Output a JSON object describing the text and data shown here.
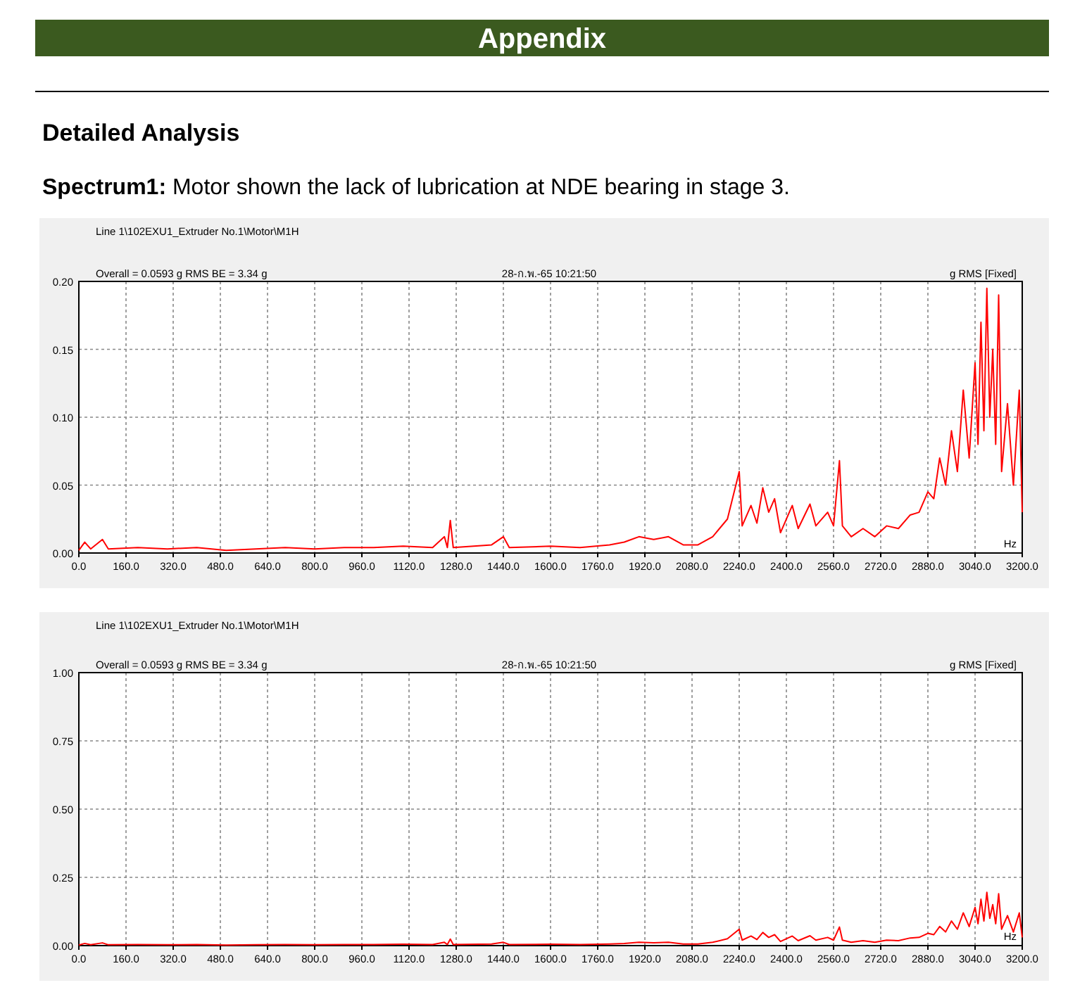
{
  "chart_data": [
    {
      "type": "line",
      "title": "Line 1\\102EXU1_Extruder No.1\\Motor\\M1H",
      "annotations": [
        "Appendix",
        "Detailed Analysis",
        "Spectrum1: Motor shown the lack of lubrication at NDE bearing in stage 3.",
        "Overall = 0.0593 g  RMS  BE = 3.34 g",
        "28-ก.พ.-65 10:21:50",
        "g  RMS  [Fixed]",
        "Hz"
      ],
      "xlim": [
        0,
        3200
      ],
      "xticks": [
        {
          "value": 0,
          "label": "0.0"
        },
        {
          "value": 160,
          "label": "160.0"
        },
        {
          "value": 320,
          "label": "320.0"
        },
        {
          "value": 480,
          "label": "480.0"
        },
        {
          "value": 640,
          "label": "640.0"
        },
        {
          "value": 800,
          "label": "800.0"
        },
        {
          "value": 960,
          "label": "960.0"
        },
        {
          "value": 1120,
          "label": "1120.0"
        },
        {
          "value": 1280,
          "label": "1280.0"
        },
        {
          "value": 1440,
          "label": "1440.0"
        },
        {
          "value": 1600,
          "label": "1600.0"
        },
        {
          "value": 1760,
          "label": "1760.0"
        },
        {
          "value": 1920,
          "label": "1920.0"
        },
        {
          "value": 2080,
          "label": "2080.0"
        },
        {
          "value": 2240,
          "label": "2240.0"
        },
        {
          "value": 2400,
          "label": "2400.0"
        },
        {
          "value": 2560,
          "label": "2560.0"
        },
        {
          "value": 2720,
          "label": "2720.0"
        },
        {
          "value": 2880,
          "label": "2880.0"
        },
        {
          "value": 3040,
          "label": "3040.0"
        },
        {
          "value": 3200,
          "label": "3200.0"
        }
      ],
      "ylim": [
        0,
        0.2
      ],
      "yticks": [
        {
          "value": 0,
          "label": "0.00"
        },
        {
          "value": 0.05,
          "label": "0.05"
        },
        {
          "value": 0.1,
          "label": "0.10"
        },
        {
          "value": 0.15,
          "label": "0.15"
        },
        {
          "value": 0.2,
          "label": "0.20"
        }
      ],
      "grid": true,
      "line_style": "solid",
      "x": [
        0,
        20,
        40,
        80,
        100,
        200,
        300,
        400,
        500,
        600,
        700,
        800,
        900,
        1000,
        1100,
        1200,
        1240,
        1250,
        1260,
        1270,
        1400,
        1440,
        1460,
        1600,
        1700,
        1800,
        1850,
        1900,
        1950,
        2000,
        2050,
        2100,
        2150,
        2200,
        2240,
        2250,
        2280,
        2300,
        2320,
        2340,
        2360,
        2380,
        2420,
        2440,
        2480,
        2500,
        2540,
        2560,
        2580,
        2590,
        2620,
        2660,
        2700,
        2740,
        2780,
        2820,
        2850,
        2880,
        2900,
        2920,
        2940,
        2960,
        2980,
        3000,
        3020,
        3040,
        3050,
        3060,
        3070,
        3080,
        3090,
        3100,
        3110,
        3120,
        3130,
        3150,
        3170,
        3190,
        3200
      ],
      "series": [
        {
          "color": "#ff0000",
          "values": [
            0.002,
            0.008,
            0.003,
            0.01,
            0.003,
            0.004,
            0.003,
            0.004,
            0.002,
            0.003,
            0.004,
            0.003,
            0.004,
            0.004,
            0.005,
            0.004,
            0.012,
            0.004,
            0.024,
            0.004,
            0.006,
            0.012,
            0.004,
            0.005,
            0.004,
            0.006,
            0.008,
            0.012,
            0.01,
            0.012,
            0.006,
            0.006,
            0.012,
            0.025,
            0.06,
            0.02,
            0.035,
            0.022,
            0.048,
            0.03,
            0.04,
            0.015,
            0.035,
            0.018,
            0.036,
            0.02,
            0.03,
            0.02,
            0.068,
            0.02,
            0.012,
            0.018,
            0.012,
            0.02,
            0.018,
            0.028,
            0.03,
            0.045,
            0.04,
            0.07,
            0.05,
            0.09,
            0.06,
            0.12,
            0.07,
            0.14,
            0.08,
            0.17,
            0.09,
            0.195,
            0.1,
            0.15,
            0.08,
            0.19,
            0.06,
            0.11,
            0.05,
            0.12,
            0.03
          ]
        }
      ]
    },
    {
      "type": "line",
      "title": "Line 1\\102EXU1_Extruder No.1\\Motor\\M1H",
      "annotations": [
        "Overall = 0.0593 g  RMS  BE = 3.34 g",
        "28-ก.พ.-65 10:21:50",
        "g  RMS  [Fixed]",
        "Hz"
      ],
      "xlim": [
        0,
        3200
      ],
      "xticks": [
        {
          "value": 0,
          "label": "0.0"
        },
        {
          "value": 160,
          "label": "160.0"
        },
        {
          "value": 320,
          "label": "320.0"
        },
        {
          "value": 480,
          "label": "480.0"
        },
        {
          "value": 640,
          "label": "640.0"
        },
        {
          "value": 800,
          "label": "800.0"
        },
        {
          "value": 960,
          "label": "960.0"
        },
        {
          "value": 1120,
          "label": "1120.0"
        },
        {
          "value": 1280,
          "label": "1280.0"
        },
        {
          "value": 1440,
          "label": "1440.0"
        },
        {
          "value": 1600,
          "label": "1600.0"
        },
        {
          "value": 1760,
          "label": "1760.0"
        },
        {
          "value": 1920,
          "label": "1920.0"
        },
        {
          "value": 2080,
          "label": "2080.0"
        },
        {
          "value": 2240,
          "label": "2240.0"
        },
        {
          "value": 2400,
          "label": "2400.0"
        },
        {
          "value": 2560,
          "label": "2560.0"
        },
        {
          "value": 2720,
          "label": "2720.0"
        },
        {
          "value": 2880,
          "label": "2880.0"
        },
        {
          "value": 3040,
          "label": "3040.0"
        },
        {
          "value": 3200,
          "label": "3200.0"
        }
      ],
      "ylim": [
        0,
        1
      ],
      "yticks": [
        {
          "value": 0,
          "label": "0.00"
        },
        {
          "value": 0.25,
          "label": "0.25"
        },
        {
          "value": 0.5,
          "label": "0.50"
        },
        {
          "value": 0.75,
          "label": "0.75"
        },
        {
          "value": 1,
          "label": "1.00"
        }
      ],
      "grid": true,
      "line_style": "solid",
      "x": [
        0,
        20,
        40,
        80,
        100,
        200,
        300,
        400,
        500,
        600,
        700,
        800,
        900,
        1000,
        1100,
        1200,
        1240,
        1250,
        1260,
        1270,
        1400,
        1440,
        1460,
        1600,
        1700,
        1800,
        1850,
        1900,
        1950,
        2000,
        2050,
        2100,
        2150,
        2200,
        2240,
        2250,
        2280,
        2300,
        2320,
        2340,
        2360,
        2380,
        2420,
        2440,
        2480,
        2500,
        2540,
        2560,
        2580,
        2590,
        2620,
        2660,
        2700,
        2740,
        2780,
        2820,
        2850,
        2880,
        2900,
        2920,
        2940,
        2960,
        2980,
        3000,
        3020,
        3040,
        3050,
        3060,
        3070,
        3080,
        3090,
        3100,
        3110,
        3120,
        3130,
        3150,
        3170,
        3190,
        3200
      ],
      "series": [
        {
          "color": "#ff0000",
          "values": [
            0.002,
            0.008,
            0.003,
            0.01,
            0.003,
            0.004,
            0.003,
            0.004,
            0.002,
            0.003,
            0.004,
            0.003,
            0.004,
            0.004,
            0.005,
            0.004,
            0.012,
            0.004,
            0.024,
            0.004,
            0.006,
            0.012,
            0.004,
            0.005,
            0.004,
            0.006,
            0.008,
            0.012,
            0.01,
            0.012,
            0.006,
            0.006,
            0.012,
            0.025,
            0.06,
            0.02,
            0.035,
            0.022,
            0.048,
            0.03,
            0.04,
            0.015,
            0.035,
            0.018,
            0.036,
            0.02,
            0.03,
            0.02,
            0.068,
            0.02,
            0.012,
            0.018,
            0.012,
            0.02,
            0.018,
            0.028,
            0.03,
            0.045,
            0.04,
            0.07,
            0.05,
            0.09,
            0.06,
            0.12,
            0.07,
            0.14,
            0.08,
            0.17,
            0.09,
            0.195,
            0.1,
            0.15,
            0.08,
            0.19,
            0.06,
            0.11,
            0.05,
            0.12,
            0.03
          ]
        }
      ]
    }
  ]
}
